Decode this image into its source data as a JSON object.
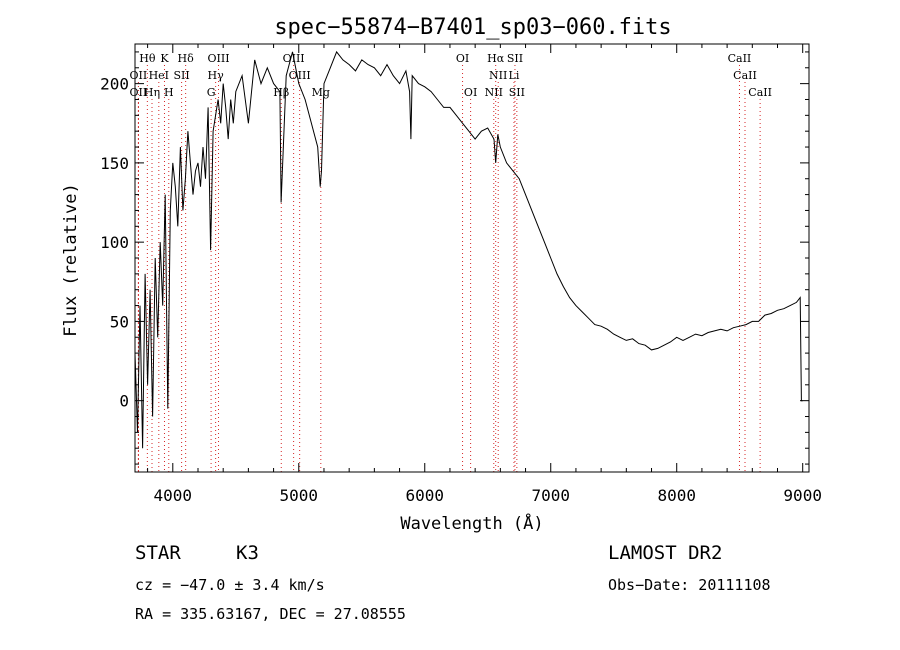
{
  "chart_data": {
    "type": "line",
    "title": "spec−55874−B7401_sp03−060.fits",
    "xlabel": "Wavelength (Å)",
    "ylabel": "Flux (relative)",
    "xlim": [
      3700,
      9050
    ],
    "ylim": [
      -45,
      225
    ],
    "xticks": [
      4000,
      5000,
      6000,
      7000,
      8000,
      9000
    ],
    "yticks": [
      0,
      50,
      100,
      150,
      200
    ],
    "line_color": "#000000",
    "marker_color": "#d62728",
    "series": [
      {
        "x": [
          3700,
          3720,
          3740,
          3760,
          3780,
          3800,
          3820,
          3840,
          3860,
          3880,
          3900,
          3920,
          3940,
          3960,
          3980,
          4000,
          4020,
          4040,
          4060,
          4080,
          4100,
          4120,
          4140,
          4160,
          4180,
          4200,
          4220,
          4240,
          4260,
          4280,
          4300,
          4320,
          4340,
          4360,
          4380,
          4400,
          4420,
          4440,
          4460,
          4480,
          4500,
          4550,
          4600,
          4650,
          4700,
          4750,
          4800,
          4850,
          4860,
          4900,
          4950,
          5000,
          5050,
          5100,
          5150,
          5170,
          5180,
          5200,
          5250,
          5300,
          5350,
          5400,
          5450,
          5500,
          5550,
          5600,
          5650,
          5700,
          5750,
          5800,
          5850,
          5880,
          5890,
          5900,
          5950,
          6000,
          6050,
          6100,
          6150,
          6200,
          6250,
          6300,
          6350,
          6400,
          6450,
          6500,
          6550,
          6563,
          6580,
          6600,
          6650,
          6700,
          6750,
          6800,
          6850,
          6900,
          6950,
          7000,
          7050,
          7100,
          7150,
          7200,
          7250,
          7300,
          7350,
          7400,
          7450,
          7500,
          7550,
          7600,
          7650,
          7700,
          7750,
          7800,
          7850,
          7900,
          7950,
          8000,
          8050,
          8100,
          8150,
          8200,
          8250,
          8300,
          8350,
          8400,
          8450,
          8500,
          8550,
          8600,
          8650,
          8700,
          8750,
          8800,
          8850,
          8900,
          8950,
          8980,
          8990,
          9000
        ],
        "y": [
          30,
          -20,
          60,
          -30,
          80,
          10,
          70,
          -10,
          90,
          40,
          100,
          60,
          130,
          -5,
          120,
          150,
          135,
          110,
          160,
          120,
          140,
          170,
          150,
          130,
          145,
          150,
          135,
          160,
          140,
          185,
          95,
          170,
          180,
          190,
          175,
          200,
          185,
          165,
          190,
          175,
          195,
          205,
          175,
          215,
          200,
          210,
          200,
          195,
          125,
          205,
          220,
          200,
          190,
          175,
          160,
          135,
          145,
          200,
          210,
          220,
          215,
          212,
          208,
          215,
          212,
          210,
          205,
          212,
          205,
          200,
          208,
          195,
          165,
          205,
          200,
          198,
          195,
          190,
          185,
          185,
          180,
          175,
          170,
          165,
          170,
          172,
          165,
          150,
          168,
          160,
          150,
          145,
          140,
          130,
          120,
          110,
          100,
          90,
          80,
          72,
          65,
          60,
          56,
          52,
          48,
          47,
          45,
          42,
          40,
          38,
          39,
          36,
          35,
          32,
          33,
          35,
          37,
          40,
          38,
          40,
          42,
          41,
          43,
          44,
          45,
          44,
          46,
          47,
          48,
          50,
          50,
          54,
          55,
          57,
          58,
          60,
          62,
          65,
          0,
          0
        ]
      }
    ],
    "spectral_lines": [
      {
        "label": "Hθ",
        "wavelength": 3798,
        "row": 1
      },
      {
        "label": "K",
        "wavelength": 3934,
        "row": 1
      },
      {
        "label": "Hδ",
        "wavelength": 4102,
        "row": 1
      },
      {
        "label": "OIII",
        "wavelength": 4363,
        "row": 1
      },
      {
        "label": "OIII",
        "wavelength": 4959,
        "row": 1
      },
      {
        "label": "OI",
        "wavelength": 6300,
        "row": 1
      },
      {
        "label": "Hα",
        "wavelength": 6563,
        "row": 1
      },
      {
        "label": "SII",
        "wavelength": 6716,
        "row": 1
      },
      {
        "label": "CaII",
        "wavelength": 8498,
        "row": 1
      },
      {
        "label": "OII",
        "wavelength": 3727,
        "row": 2
      },
      {
        "label": "HeI",
        "wavelength": 3889,
        "row": 2
      },
      {
        "label": "SII",
        "wavelength": 4070,
        "row": 2
      },
      {
        "label": "Hγ",
        "wavelength": 4340,
        "row": 2
      },
      {
        "label": "OIII",
        "wavelength": 5007,
        "row": 2
      },
      {
        "label": "NII",
        "wavelength": 6583,
        "row": 2
      },
      {
        "label": "Li",
        "wavelength": 6708,
        "row": 2
      },
      {
        "label": "CaII",
        "wavelength": 8542,
        "row": 2
      },
      {
        "label": "OII",
        "wavelength": 3727,
        "row": 3
      },
      {
        "label": "Hη",
        "wavelength": 3835,
        "row": 3
      },
      {
        "label": "H",
        "wavelength": 3968,
        "row": 3
      },
      {
        "label": "G",
        "wavelength": 4304,
        "row": 3
      },
      {
        "label": "Hβ",
        "wavelength": 4861,
        "row": 3
      },
      {
        "label": "Mg",
        "wavelength": 5175,
        "row": 3
      },
      {
        "label": "OI",
        "wavelength": 6364,
        "row": 3
      },
      {
        "label": "NII",
        "wavelength": 6548,
        "row": 3
      },
      {
        "label": "SII",
        "wavelength": 6731,
        "row": 3
      },
      {
        "label": "CaII",
        "wavelength": 8662,
        "row": 3
      }
    ]
  },
  "info": {
    "object_class": "STAR",
    "subclass": "K3",
    "survey": "LAMOST DR2",
    "redshift": "cz = −47.0 ± 3.4 km/s",
    "obs_date": "Obs−Date: 20111108",
    "coords": "RA = 335.63167, DEC =  27.08555"
  }
}
